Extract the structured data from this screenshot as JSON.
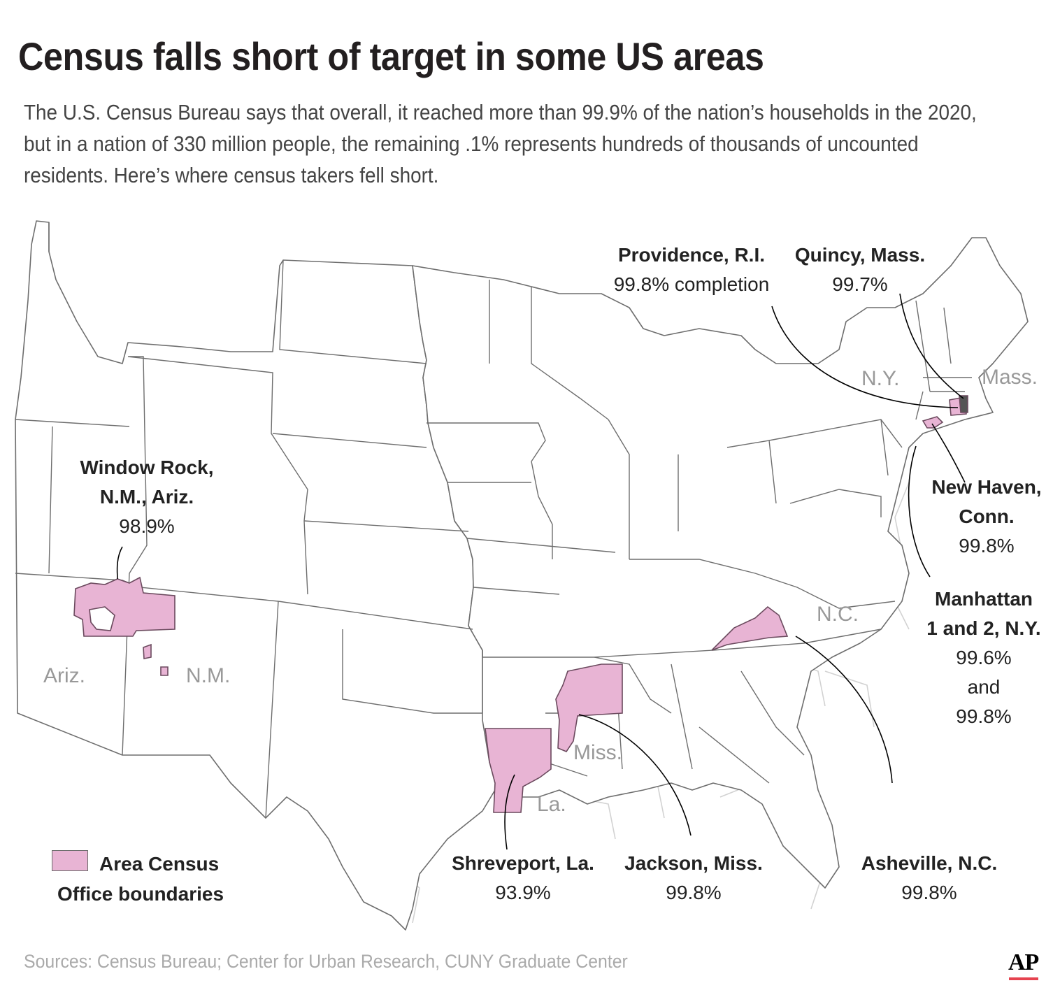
{
  "title": "Census falls short of target in some US areas",
  "subtitle": "The U.S. Census Bureau says that overall, it reached more than 99.9% of the nation’s households in the 2020, but in a nation of 330 million people, the remaining .1% represents hundreds of thousands of uncounted residents. Here’s where census takers fell short.",
  "colors": {
    "highlight_fill": "#e8b4d4",
    "state_line": "#6e6e6e",
    "district_line": "#cfcfcf",
    "leader_line": "#000000"
  },
  "callouts": {
    "providence": {
      "name": "Providence, R.I.",
      "pct": "99.8% completion"
    },
    "quincy": {
      "name": "Quincy, Mass.",
      "pct": "99.7%"
    },
    "window_rock": {
      "name1": "Window Rock,",
      "name2": "N.M., Ariz.",
      "pct": "98.9%"
    },
    "new_haven": {
      "name1": "New Haven,",
      "name2": "Conn.",
      "pct": "99.8%"
    },
    "manhattan": {
      "name1": "Manhattan",
      "name2": "1 and 2, N.Y.",
      "pct1": "99.6%",
      "joiner": "and",
      "pct2": "99.8%"
    },
    "shreveport": {
      "name": "Shreveport, La.",
      "pct": "93.9%"
    },
    "jackson": {
      "name": "Jackson, Miss.",
      "pct": "99.8%"
    },
    "asheville": {
      "name": "Asheville, N.C.",
      "pct": "99.8%"
    }
  },
  "state_labels": {
    "ny": "N.Y.",
    "mass": "Mass.",
    "nc": "N.C.",
    "ariz": "Ariz.",
    "nm": "N.M.",
    "miss": "Miss.",
    "la": "La."
  },
  "legend": {
    "label": "Area Census Office boundaries"
  },
  "source": "Sources: Census Bureau; Center for Urban Research, CUNY Graduate Center",
  "logo": "AP"
}
